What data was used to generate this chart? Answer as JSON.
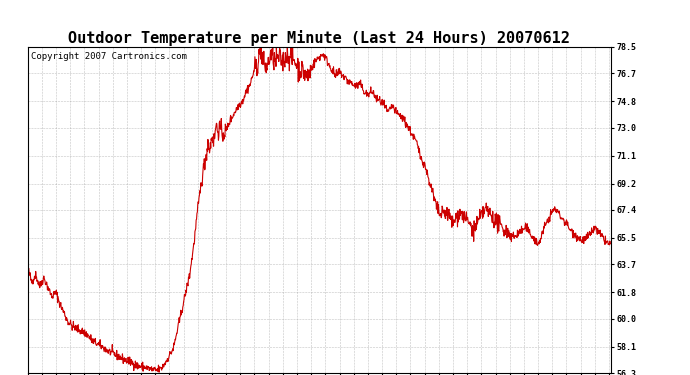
{
  "title": "Outdoor Temperature per Minute (Last 24 Hours) 20070612",
  "copyright_text": "Copyright 2007 Cartronics.com",
  "line_color": "#cc0000",
  "background_color": "#ffffff",
  "plot_background": "#ffffff",
  "grid_color": "#999999",
  "yticks": [
    56.3,
    58.1,
    60.0,
    61.8,
    63.7,
    65.5,
    67.4,
    69.2,
    71.1,
    73.0,
    74.8,
    76.7,
    78.5
  ],
  "ymin": 56.3,
  "ymax": 78.5,
  "title_fontsize": 11,
  "copyright_fontsize": 6.5,
  "tick_fontsize": 6,
  "line_width": 0.8,
  "xtick_interval_minutes": 35
}
